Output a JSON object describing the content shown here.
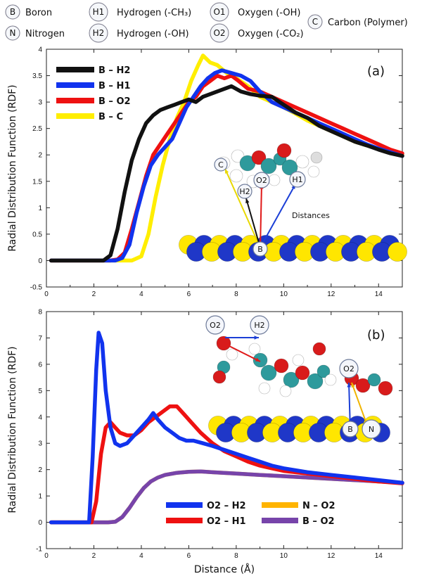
{
  "atom_key": [
    {
      "symbol": "B",
      "label": "Boron"
    },
    {
      "symbol": "H1",
      "label": "Hydrogen (-CH₃)"
    },
    {
      "symbol": "O1",
      "label": "Oxygen (-OH)"
    },
    {
      "symbol": "C",
      "label": "Carbon (Polymer)"
    },
    {
      "symbol": "N",
      "label": "Nitrogen"
    },
    {
      "symbol": "H2",
      "label": "Hydrogen (-OH)"
    },
    {
      "symbol": "O2",
      "label": "Oxygen (-CO₂)"
    }
  ],
  "chart_data": [
    {
      "type": "line",
      "panel_label": "(a)",
      "ylabel": "Radial Distribution Function (RDF)",
      "xlabel": "",
      "xlim": [
        0,
        15
      ],
      "ylim": [
        -0.5,
        4
      ],
      "xticks": [
        0,
        2,
        4,
        6,
        8,
        10,
        12,
        14
      ],
      "yticks": [
        -0.5,
        0,
        0.5,
        1,
        1.5,
        2,
        2.5,
        3,
        3.5,
        4
      ],
      "legend_position": "top-left",
      "series": [
        {
          "name": "B – C",
          "color": "#ffee00",
          "x": [
            0.2,
            2.8,
            3.6,
            4.0,
            4.3,
            4.6,
            4.9,
            5.2,
            5.5,
            5.8,
            6.1,
            6.4,
            6.6,
            6.9,
            7.2,
            7.6,
            8.0,
            8.5,
            9.0,
            9.5,
            10,
            10.5,
            11,
            11.5,
            12,
            12.5,
            13,
            13.5,
            14,
            14.5,
            15
          ],
          "y": [
            0,
            0,
            0,
            0.08,
            0.5,
            1.2,
            1.8,
            2.3,
            2.7,
            3.0,
            3.4,
            3.7,
            3.88,
            3.75,
            3.7,
            3.55,
            3.45,
            3.3,
            3.1,
            3.0,
            2.9,
            2.78,
            2.65,
            2.55,
            2.45,
            2.35,
            2.25,
            2.18,
            2.12,
            2.05,
            2.0
          ]
        },
        {
          "name": "B – O2",
          "color": "#ee1111",
          "x": [
            0.2,
            2.7,
            3.0,
            3.3,
            3.6,
            3.9,
            4.2,
            4.5,
            4.8,
            5.1,
            5.4,
            5.7,
            6.0,
            6.3,
            6.6,
            6.9,
            7.2,
            7.5,
            7.8,
            8.1,
            8.5,
            9.0,
            9.5,
            10,
            10.5,
            11,
            11.5,
            12,
            12.5,
            13,
            13.5,
            14,
            14.5,
            15
          ],
          "y": [
            0,
            0,
            0.02,
            0.15,
            0.6,
            1.1,
            1.6,
            2.0,
            2.2,
            2.4,
            2.6,
            2.8,
            3.0,
            3.1,
            3.3,
            3.4,
            3.5,
            3.45,
            3.5,
            3.4,
            3.25,
            3.2,
            3.1,
            3.0,
            2.9,
            2.8,
            2.7,
            2.6,
            2.5,
            2.4,
            2.3,
            2.2,
            2.1,
            2.03
          ]
        },
        {
          "name": "B – H1",
          "color": "#1133ee",
          "x": [
            0.2,
            2.9,
            3.2,
            3.5,
            3.8,
            4.1,
            4.4,
            4.7,
            5.0,
            5.3,
            5.6,
            5.9,
            6.2,
            6.5,
            6.8,
            7.1,
            7.4,
            7.8,
            8.2,
            8.6,
            9.0,
            9.5,
            10,
            10.5,
            11,
            11.5,
            12,
            12.5,
            13,
            13.5,
            14,
            14.5,
            15
          ],
          "y": [
            0,
            0,
            0.05,
            0.3,
            0.9,
            1.4,
            1.8,
            2.0,
            2.15,
            2.3,
            2.6,
            2.9,
            3.1,
            3.3,
            3.45,
            3.55,
            3.6,
            3.55,
            3.5,
            3.4,
            3.2,
            3.0,
            2.9,
            2.8,
            2.7,
            2.6,
            2.5,
            2.4,
            2.3,
            2.2,
            2.12,
            2.05,
            1.98
          ]
        },
        {
          "name": "B – H2",
          "color": "#111111",
          "x": [
            0.2,
            2.4,
            2.7,
            3.0,
            3.3,
            3.6,
            3.9,
            4.2,
            4.5,
            4.8,
            5.1,
            5.4,
            5.7,
            6.0,
            6.3,
            6.6,
            6.9,
            7.2,
            7.5,
            7.8,
            8.2,
            8.6,
            9.0,
            9.5,
            10,
            10.5,
            11,
            11.5,
            12,
            12.5,
            13,
            13.5,
            14,
            14.5,
            15
          ],
          "y": [
            0,
            0,
            0.1,
            0.6,
            1.3,
            1.9,
            2.3,
            2.6,
            2.75,
            2.85,
            2.9,
            2.95,
            3.0,
            3.05,
            3.0,
            3.1,
            3.15,
            3.2,
            3.25,
            3.3,
            3.2,
            3.15,
            3.12,
            3.1,
            2.95,
            2.8,
            2.7,
            2.55,
            2.45,
            2.35,
            2.25,
            2.18,
            2.1,
            2.03,
            1.98
          ]
        }
      ]
    },
    {
      "type": "line",
      "panel_label": "(b)",
      "ylabel": "Radial Distribution Function (RDF)",
      "xlabel": "Distance (Å)",
      "xlim": [
        0,
        15
      ],
      "ylim": [
        -1,
        8
      ],
      "xticks": [
        0,
        2,
        4,
        6,
        8,
        10,
        12,
        14
      ],
      "yticks": [
        -1,
        0,
        1,
        2,
        3,
        4,
        5,
        6,
        7,
        8
      ],
      "legend_position": "bottom-right",
      "series": [
        {
          "name": "N – O2",
          "color": "#ffb400",
          "x": [
            0.2,
            2.6,
            2.9,
            3.2,
            3.5,
            3.8,
            4.1,
            4.4,
            4.7,
            5.0,
            5.5,
            6.0,
            6.5,
            7.0,
            8.0,
            9.0,
            10,
            11,
            12,
            13,
            14,
            15
          ],
          "y": [
            0,
            0,
            0.02,
            0.2,
            0.55,
            0.95,
            1.3,
            1.55,
            1.7,
            1.8,
            1.88,
            1.92,
            1.93,
            1.9,
            1.85,
            1.8,
            1.75,
            1.7,
            1.65,
            1.6,
            1.55,
            1.5
          ]
        },
        {
          "name": "B – O2",
          "color": "#7744aa",
          "x": [
            0.2,
            2.6,
            2.9,
            3.2,
            3.5,
            3.8,
            4.1,
            4.4,
            4.7,
            5.0,
            5.5,
            6.0,
            6.5,
            7.0,
            8.0,
            9.0,
            10,
            11,
            12,
            13,
            14,
            15
          ],
          "y": [
            0,
            0,
            0.02,
            0.2,
            0.55,
            0.95,
            1.3,
            1.55,
            1.7,
            1.8,
            1.88,
            1.92,
            1.93,
            1.9,
            1.85,
            1.8,
            1.75,
            1.7,
            1.65,
            1.6,
            1.55,
            1.5
          ]
        },
        {
          "name": "O2 – H1",
          "color": "#ee1111",
          "x": [
            0.2,
            1.9,
            2.1,
            2.3,
            2.5,
            2.7,
            2.9,
            3.1,
            3.4,
            3.7,
            4.0,
            4.3,
            4.6,
            4.9,
            5.2,
            5.5,
            5.8,
            6.1,
            6.5,
            7.0,
            7.5,
            8.0,
            8.5,
            9.0,
            9.5,
            10,
            11,
            12,
            13,
            14,
            15
          ],
          "y": [
            0,
            0,
            0.8,
            2.6,
            3.6,
            3.8,
            3.6,
            3.4,
            3.3,
            3.3,
            3.5,
            3.8,
            4.0,
            4.2,
            4.4,
            4.4,
            4.1,
            3.8,
            3.4,
            3.0,
            2.7,
            2.5,
            2.3,
            2.15,
            2.05,
            1.95,
            1.85,
            1.75,
            1.65,
            1.55,
            1.48
          ]
        },
        {
          "name": "O2 – H2",
          "color": "#1133ee",
          "x": [
            0.2,
            1.8,
            1.95,
            2.1,
            2.2,
            2.35,
            2.5,
            2.7,
            2.9,
            3.1,
            3.4,
            3.7,
            4.0,
            4.3,
            4.5,
            4.7,
            5.0,
            5.3,
            5.6,
            5.9,
            6.2,
            6.6,
            7.0,
            7.5,
            8.0,
            8.5,
            9.0,
            9.5,
            10,
            11,
            12,
            13,
            14,
            15
          ],
          "y": [
            0,
            0,
            2.5,
            5.8,
            7.2,
            6.8,
            5.0,
            3.6,
            3.0,
            2.9,
            3.0,
            3.3,
            3.6,
            3.9,
            4.15,
            3.9,
            3.6,
            3.4,
            3.2,
            3.1,
            3.1,
            3.0,
            2.9,
            2.75,
            2.6,
            2.45,
            2.3,
            2.15,
            2.05,
            1.9,
            1.8,
            1.7,
            1.6,
            1.5
          ]
        }
      ]
    }
  ],
  "legend_a": [
    {
      "name": "B – H2",
      "color": "#111111"
    },
    {
      "name": "B – H1",
      "color": "#1133ee"
    },
    {
      "name": "B – O2",
      "color": "#ee1111"
    },
    {
      "name": "B – C",
      "color": "#ffee00"
    }
  ],
  "legend_b": [
    {
      "name": "O2 – H2",
      "color": "#1133ee"
    },
    {
      "name": "O2 – H1",
      "color": "#ee1111"
    },
    {
      "name": "N – O2",
      "color": "#ffb400"
    },
    {
      "name": "B – O2",
      "color": "#7744aa"
    }
  ],
  "inset_a": {
    "labels": [
      "C",
      "O2",
      "H1",
      "H2",
      "B"
    ],
    "caption": "Distances"
  },
  "inset_b": {
    "labels": [
      "O2",
      "H2",
      "O2",
      "B",
      "N"
    ]
  }
}
